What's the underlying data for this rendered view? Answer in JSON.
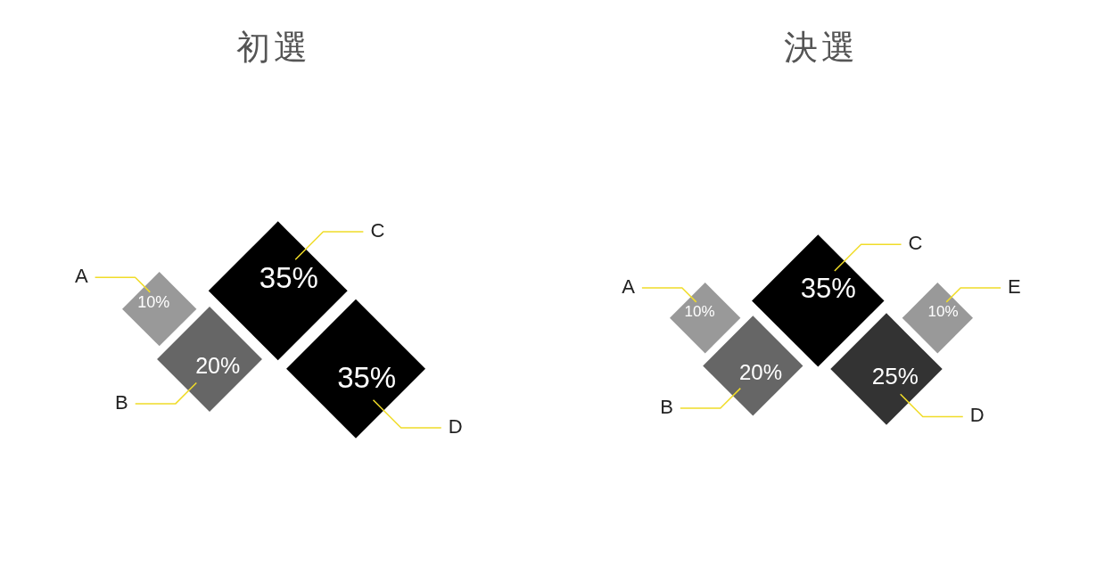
{
  "chart_data": [
    {
      "type": "other",
      "title": "初選",
      "categories": [
        "A",
        "B",
        "C",
        "D"
      ],
      "values": [
        10,
        20,
        35,
        35
      ],
      "colors": [
        "#999999",
        "#666666",
        "#000000",
        "#000000"
      ],
      "value_labels": [
        "10%",
        "20%",
        "35%",
        "35%"
      ]
    },
    {
      "type": "other",
      "title": "決選",
      "categories": [
        "A",
        "B",
        "C",
        "D",
        "E"
      ],
      "values": [
        10,
        20,
        35,
        25,
        10
      ],
      "colors": [
        "#999999",
        "#666666",
        "#000000",
        "#333333",
        "#999999"
      ],
      "value_labels": [
        "10%",
        "20%",
        "35%",
        "25%",
        "10%"
      ]
    }
  ]
}
